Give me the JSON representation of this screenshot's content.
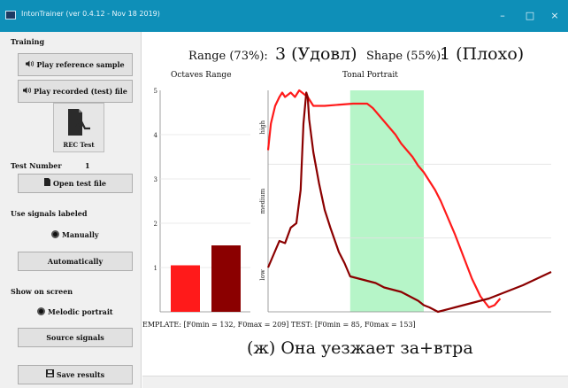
{
  "window": {
    "title": "IntonTrainer (ver 0.4.12 - Nov 18 2019)",
    "controls": {
      "minimize": "–",
      "maximize": "□",
      "close": "×"
    }
  },
  "sidebar": {
    "training_label": "Training",
    "play_reference_label": "Play reference sample",
    "play_recorded_label": "Play recorded (test) file",
    "rec_label": "REC Test",
    "test_number_label": "Test Number",
    "test_number_value": "1",
    "open_test_label": "Open test file",
    "use_signals_label": "Use signals labeled",
    "manually_label": "Manually",
    "automatically_label": "Automatically",
    "show_on_screen_label": "Show on screen",
    "melodic_portrait_label": "Melodic portrait",
    "source_signals_label": "Source signals",
    "save_results_label": "Save results",
    "icons": {
      "speaker": "speaker-icon",
      "file": "file-icon",
      "save": "save-icon",
      "rec": "microphone-waveform-icon"
    }
  },
  "scores": {
    "range_label": "Range (73%):",
    "range_value": "3 (Удовл)",
    "shape_label": "Shape (55%):",
    "shape_value": "1 (Плохо)"
  },
  "template_text": "EMPLATE: [F0min = 132, F0max = 209] TEST: [F0min = 85, F0max = 153]",
  "caption": "(ж) Она уезжает за+втра",
  "colors": {
    "reference": "#ff1a1a",
    "test": "#8b0000",
    "highlight": "#b6f5c8",
    "titlebar": "#0e8fb8"
  },
  "chart_data": [
    {
      "type": "bar",
      "title": "Octaves Range",
      "y_ticks": [
        "1",
        "2",
        "3",
        "4",
        "5"
      ],
      "ylim": [
        0,
        5
      ],
      "series": [
        {
          "color": "#ff1a1a",
          "values": [
            1.05
          ]
        },
        {
          "color": "#8b0000",
          "values": [
            1.5
          ]
        }
      ]
    },
    {
      "type": "line",
      "title": "Tonal Portrait",
      "y_ticks": [
        "low",
        "medium",
        "high"
      ],
      "xlim": [
        0,
        1
      ],
      "ylim": [
        0,
        1
      ],
      "highlight_x": [
        0.29,
        0.55
      ],
      "series": [
        {
          "color": "#ff1a1a",
          "x": [
            0.0,
            0.01,
            0.025,
            0.04,
            0.05,
            0.06,
            0.08,
            0.095,
            0.11,
            0.13,
            0.14,
            0.16,
            0.2,
            0.3,
            0.35,
            0.37,
            0.39,
            0.41,
            0.43,
            0.45,
            0.47,
            0.49,
            0.51,
            0.53,
            0.55,
            0.57,
            0.59,
            0.61,
            0.63,
            0.66,
            0.69,
            0.72,
            0.75,
            0.78,
            0.8,
            0.82
          ],
          "y": [
            0.73,
            0.85,
            0.93,
            0.97,
            0.99,
            0.97,
            0.99,
            0.97,
            1.0,
            0.98,
            0.97,
            0.93,
            0.93,
            0.94,
            0.94,
            0.92,
            0.89,
            0.86,
            0.83,
            0.8,
            0.76,
            0.73,
            0.7,
            0.66,
            0.63,
            0.59,
            0.55,
            0.5,
            0.44,
            0.35,
            0.25,
            0.15,
            0.07,
            0.02,
            0.03,
            0.06
          ]
        },
        {
          "color": "#8b0000",
          "x": [
            0.0,
            0.02,
            0.04,
            0.06,
            0.08,
            0.1,
            0.115,
            0.125,
            0.135,
            0.14,
            0.145,
            0.16,
            0.18,
            0.2,
            0.22,
            0.25,
            0.27,
            0.29,
            0.32,
            0.35,
            0.38,
            0.41,
            0.44,
            0.47,
            0.5,
            0.53,
            0.55,
            0.57,
            0.6,
            0.66,
            0.72,
            0.78,
            0.84,
            0.9,
            0.95,
            1.0
          ],
          "y": [
            0.2,
            0.26,
            0.32,
            0.31,
            0.38,
            0.4,
            0.55,
            0.85,
            0.99,
            0.97,
            0.87,
            0.72,
            0.58,
            0.46,
            0.38,
            0.27,
            0.22,
            0.16,
            0.15,
            0.14,
            0.13,
            0.11,
            0.1,
            0.09,
            0.07,
            0.05,
            0.03,
            0.02,
            0.0,
            0.02,
            0.04,
            0.06,
            0.09,
            0.12,
            0.15,
            0.18
          ]
        }
      ]
    }
  ]
}
